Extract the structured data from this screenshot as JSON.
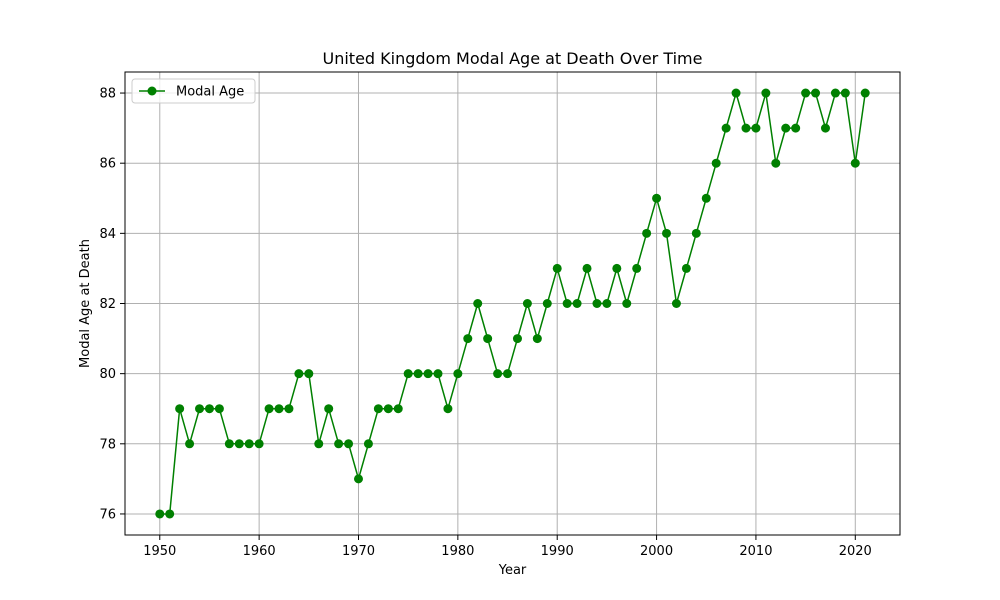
{
  "chart_data": {
    "type": "line",
    "title": "United Kingdom Modal Age at Death Over Time",
    "xlabel": "Year",
    "ylabel": "Modal Age at Death",
    "xlim": [
      1946.5,
      2024.5
    ],
    "ylim": [
      75.4,
      88.6
    ],
    "xticks": [
      1950,
      1960,
      1970,
      1980,
      1990,
      2000,
      2010,
      2020
    ],
    "yticks": [
      76,
      78,
      80,
      82,
      84,
      86,
      88
    ],
    "grid": true,
    "legend_position": "top-left",
    "series": [
      {
        "name": "Modal Age",
        "color": "#008000",
        "marker": "circle",
        "x": [
          1950,
          1951,
          1952,
          1953,
          1954,
          1955,
          1956,
          1957,
          1958,
          1959,
          1960,
          1961,
          1962,
          1963,
          1964,
          1965,
          1966,
          1967,
          1968,
          1969,
          1970,
          1971,
          1972,
          1973,
          1974,
          1975,
          1976,
          1977,
          1978,
          1979,
          1980,
          1981,
          1982,
          1983,
          1984,
          1985,
          1986,
          1987,
          1988,
          1989,
          1990,
          1991,
          1992,
          1993,
          1994,
          1995,
          1996,
          1997,
          1998,
          1999,
          2000,
          2001,
          2002,
          2003,
          2004,
          2005,
          2006,
          2007,
          2008,
          2009,
          2010,
          2011,
          2012,
          2013,
          2014,
          2015,
          2016,
          2017,
          2018,
          2019,
          2020,
          2021
        ],
        "values": [
          76,
          76,
          79,
          78,
          79,
          79,
          79,
          78,
          78,
          78,
          78,
          79,
          79,
          79,
          80,
          80,
          78,
          79,
          78,
          78,
          77,
          78,
          79,
          79,
          79,
          80,
          80,
          80,
          80,
          79,
          80,
          81,
          82,
          81,
          80,
          80,
          81,
          82,
          81,
          82,
          83,
          82,
          82,
          83,
          82,
          82,
          83,
          82,
          83,
          84,
          85,
          84,
          82,
          83,
          84,
          85,
          86,
          87,
          88,
          87,
          87,
          88,
          86,
          87,
          87,
          88,
          88,
          87,
          88,
          88,
          86,
          88
        ]
      }
    ]
  }
}
